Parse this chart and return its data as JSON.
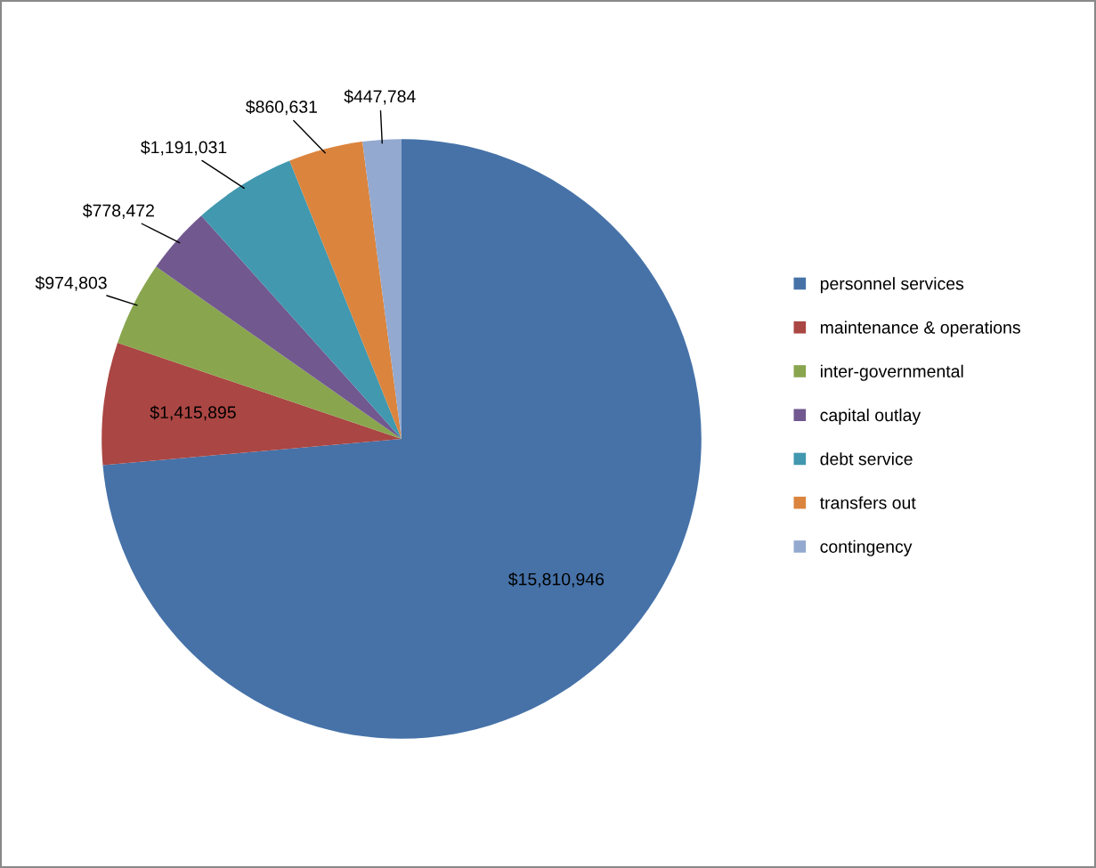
{
  "chart_data": {
    "type": "pie",
    "categories": [
      "personnel services",
      "maintenance & operations",
      "inter-governmental",
      "capital outlay",
      "debt service",
      "transfers out",
      "contingency"
    ],
    "values": [
      15810946,
      1415895,
      974803,
      778472,
      1191031,
      860631,
      447784
    ],
    "colors": [
      "#4672a8",
      "#aa4643",
      "#89a54e",
      "#71588f",
      "#4198af",
      "#db843d",
      "#93a9cf"
    ],
    "value_labels": [
      "$15,810,946",
      "$1,415,895",
      "$974,803",
      "$778,472",
      "$1,191,031",
      "$860,631",
      "$447,784"
    ],
    "legend": "right"
  }
}
